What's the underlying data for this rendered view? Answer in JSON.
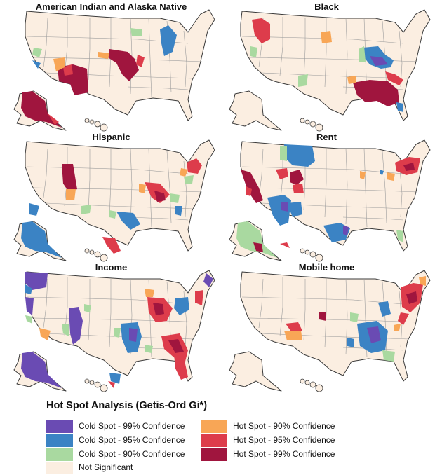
{
  "colors": {
    "cold99": "#6a4bb3",
    "cold95": "#3b83c4",
    "cold90": "#a9d9a0",
    "ns": "#fbeee1",
    "hot90": "#f8a656",
    "hot95": "#dd3c4b",
    "hot99": "#a0153e",
    "border": "#3a3a3a",
    "state": "#9c9c9c"
  },
  "panels": [
    {
      "title": "American Indian and Alaska Native"
    },
    {
      "title": "Black"
    },
    {
      "title": "Hispanic"
    },
    {
      "title": "Rent"
    },
    {
      "title": "Income"
    },
    {
      "title": "Mobile home"
    }
  ],
  "legend": {
    "title": "Hot Spot Analysis (Getis-Ord Gi*)",
    "items": [
      {
        "label": "Cold Spot - 99% Confidence",
        "color": "cold99"
      },
      {
        "label": "Cold Spot - 95% Confidence",
        "color": "cold95"
      },
      {
        "label": "Cold Spot - 90% Confidence",
        "color": "cold90"
      },
      {
        "label": "Not Significant",
        "color": "ns"
      },
      {
        "label": "Hot Spot - 90% Confidence",
        "color": "hot90"
      },
      {
        "label": "Hot Spot - 95% Confidence",
        "color": "hot95"
      },
      {
        "label": "Hot Spot - 99% Confidence",
        "color": "hot99"
      }
    ]
  }
}
